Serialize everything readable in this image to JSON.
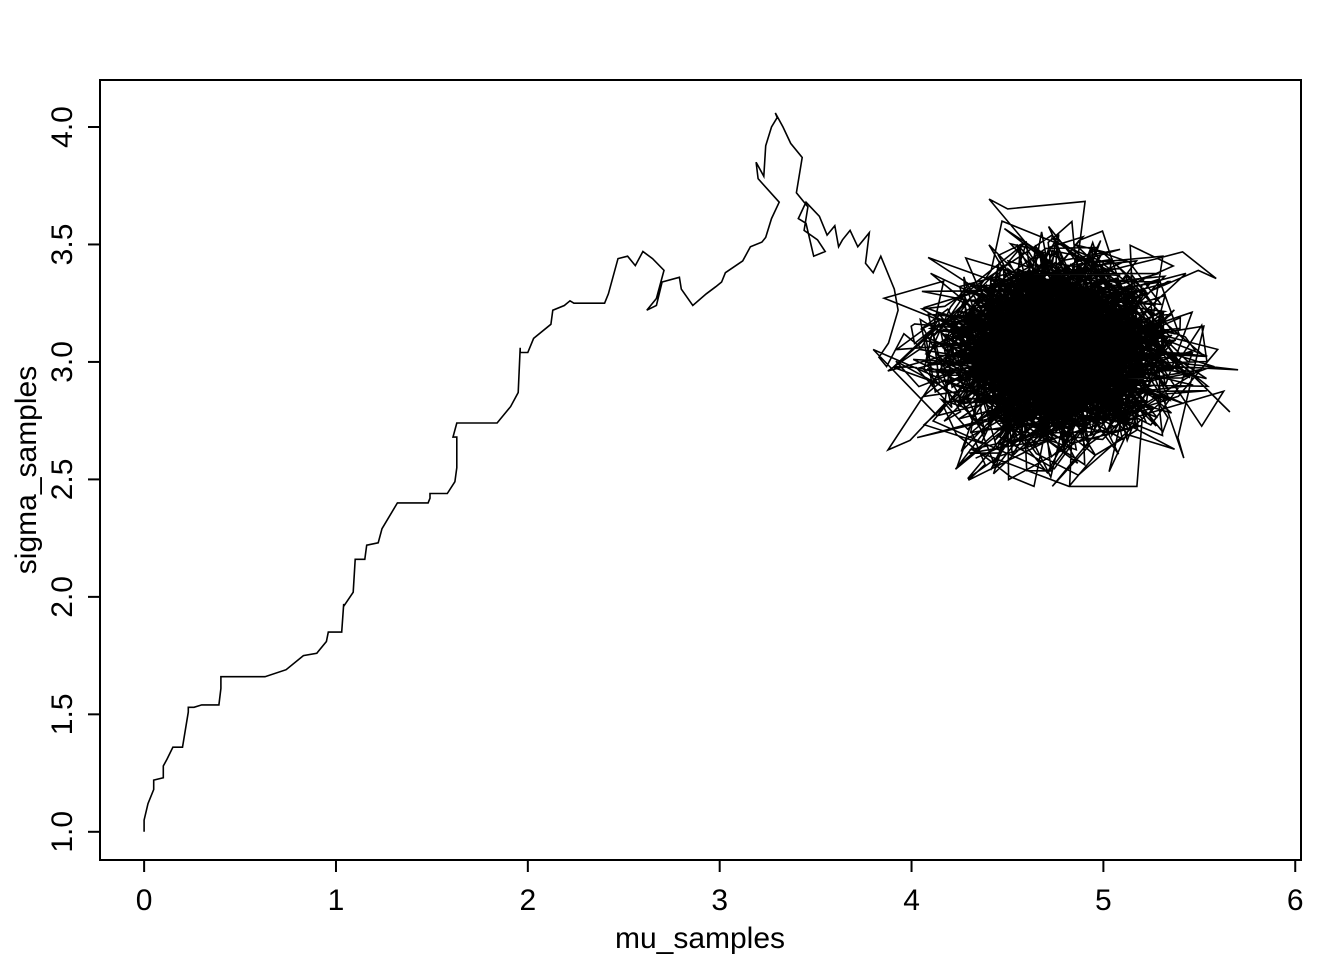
{
  "chart_data": {
    "type": "line",
    "title": "",
    "xlabel": "mu_samples",
    "ylabel": "sigma_samples",
    "xlim": [
      -0.23,
      6.03
    ],
    "ylim": [
      0.88,
      4.2
    ],
    "xticks": [
      "0",
      "1",
      "2",
      "3",
      "4",
      "5",
      "6"
    ],
    "yticks": [
      "1.0",
      "1.5",
      "2.0",
      "2.5",
      "3.0",
      "3.5",
      "4.0"
    ],
    "grid": false,
    "legend": "none",
    "line_color": "#000000",
    "series": [
      {
        "x": [
          0.0,
          0.0,
          0.02,
          0.05,
          0.05,
          0.1,
          0.1,
          0.12,
          0.15,
          0.2,
          0.23,
          0.23,
          0.26,
          0.3,
          0.3,
          0.39,
          0.4,
          0.4,
          0.63,
          0.74,
          0.83,
          0.9,
          0.91,
          0.95,
          0.96,
          1.03,
          1.04,
          1.04,
          1.09,
          1.1,
          1.15,
          1.16,
          1.16,
          1.22,
          1.24,
          1.32,
          1.48,
          1.49,
          1.49,
          1.58,
          1.62,
          1.63,
          1.63,
          1.61,
          1.63,
          1.84,
          1.91,
          1.95,
          1.96,
          1.96,
          2.0,
          2.03,
          2.12,
          2.13,
          2.19,
          2.22,
          2.24,
          2.4,
          2.42,
          2.47,
          2.52,
          2.56,
          2.6,
          2.65,
          2.71,
          2.67,
          2.62,
          2.67,
          2.7,
          2.79,
          2.8,
          2.86,
          2.93,
          2.98,
          3.01,
          3.03,
          3.12,
          3.16,
          3.22,
          3.24,
          3.27,
          3.31,
          3.2,
          3.19,
          3.23,
          3.24,
          3.27,
          3.3,
          3.29,
          3.33,
          3.37,
          3.43,
          3.4,
          3.46,
          3.44,
          3.51,
          3.55,
          3.49,
          3.45,
          3.41,
          3.45,
          3.52,
          3.56,
          3.6,
          3.62,
          3.64,
          3.68,
          3.72,
          3.78,
          3.76,
          3.8,
          3.84,
          3.91,
          3.93,
          3.88,
          3.83,
          3.87,
          3.96,
          4.05,
          4.14,
          4.19,
          4.27
        ],
        "y": [
          1.0,
          1.05,
          1.12,
          1.18,
          1.22,
          1.23,
          1.28,
          1.31,
          1.36,
          1.36,
          1.51,
          1.53,
          1.53,
          1.54,
          1.54,
          1.54,
          1.61,
          1.66,
          1.66,
          1.69,
          1.75,
          1.76,
          1.77,
          1.81,
          1.85,
          1.85,
          1.97,
          1.96,
          2.02,
          2.16,
          2.16,
          2.22,
          2.22,
          2.23,
          2.29,
          2.4,
          2.4,
          2.42,
          2.44,
          2.44,
          2.49,
          2.55,
          2.68,
          2.68,
          2.74,
          2.74,
          2.81,
          2.87,
          3.06,
          3.04,
          3.04,
          3.1,
          3.16,
          3.22,
          3.24,
          3.26,
          3.25,
          3.25,
          3.29,
          3.44,
          3.45,
          3.41,
          3.47,
          3.44,
          3.39,
          3.27,
          3.22,
          3.24,
          3.34,
          3.36,
          3.31,
          3.24,
          3.29,
          3.32,
          3.34,
          3.38,
          3.43,
          3.49,
          3.51,
          3.53,
          3.61,
          3.68,
          3.78,
          3.85,
          3.79,
          3.92,
          4.0,
          4.04,
          4.06,
          4.0,
          3.93,
          3.87,
          3.72,
          3.66,
          3.56,
          3.52,
          3.47,
          3.45,
          3.59,
          3.61,
          3.68,
          3.62,
          3.54,
          3.58,
          3.49,
          3.52,
          3.56,
          3.49,
          3.55,
          3.42,
          3.38,
          3.45,
          3.31,
          3.22,
          3.08,
          3.02,
          2.98,
          3.12,
          3.06,
          3.18,
          2.98,
          3.07
        ]
      }
    ],
    "cloud": {
      "center_x": 4.75,
      "center_y": 3.05,
      "spread_x": 0.25,
      "spread_y": 0.17,
      "n_points": 3000
    }
  }
}
